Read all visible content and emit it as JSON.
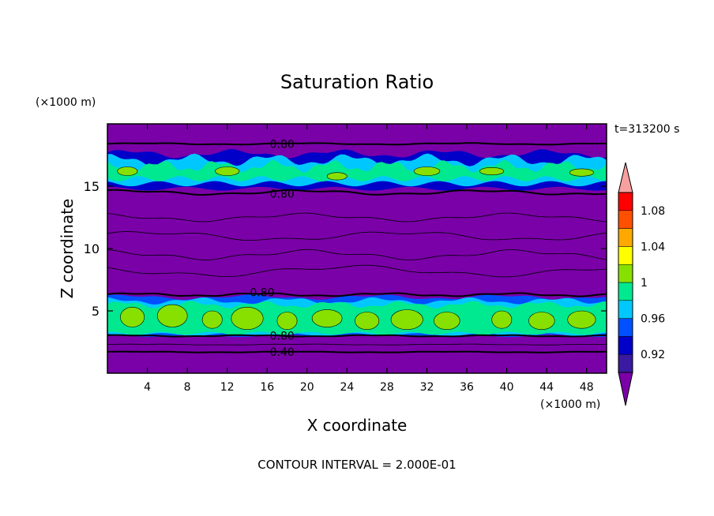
{
  "chart_data": {
    "type": "heatmap",
    "title": "Saturation Ratio",
    "xlabel": "X coordinate",
    "ylabel": "Z coordinate",
    "x_unit": "(×1000 m)",
    "z_unit": "(×1000 m)",
    "time_label": "t=313200 s",
    "contour_interval_label": "CONTOUR INTERVAL = 2.000E-01",
    "xlim": [
      0,
      50
    ],
    "ylim": [
      0,
      20
    ],
    "x_ticks": [
      "4",
      "8",
      "12",
      "16",
      "20",
      "24",
      "28",
      "32",
      "36",
      "40",
      "44",
      "48"
    ],
    "x_tick_values": [
      4,
      8,
      12,
      16,
      20,
      24,
      28,
      32,
      36,
      40,
      44,
      48
    ],
    "y_ticks": [
      "5",
      "10",
      "15"
    ],
    "y_tick_values": [
      5,
      10,
      15
    ],
    "colorbar": {
      "levels": [
        0.9,
        0.92,
        0.94,
        0.96,
        0.98,
        1.0,
        1.02,
        1.04,
        1.06,
        1.08,
        1.1
      ],
      "tick_labels": [
        "0.92",
        "0.96",
        "1",
        "1.04",
        "1.08"
      ],
      "tick_values": [
        0.92,
        0.96,
        1.0,
        1.04,
        1.08
      ],
      "colors": [
        "#7a00a8",
        "#3a1aa0",
        "#0000c8",
        "#0050ff",
        "#00c8ff",
        "#00e890",
        "#88e000",
        "#ffff00",
        "#ffa800",
        "#ff5000",
        "#ff0000",
        "#f8a0a0"
      ]
    },
    "contour_labels": [
      {
        "text": "0.80",
        "x": 17.5,
        "y": 18.4
      },
      {
        "text": "0.80",
        "x": 17.5,
        "y": 14.4
      },
      {
        "text": "0.80",
        "x": 15.5,
        "y": 6.5
      },
      {
        "text": "0.80",
        "x": 17.5,
        "y": 3.0
      },
      {
        "text": "0.40",
        "x": 17.5,
        "y": 1.7
      }
    ],
    "background_color": "#7a00a8"
  }
}
